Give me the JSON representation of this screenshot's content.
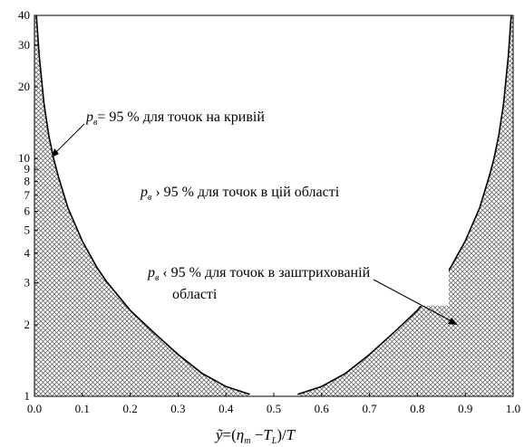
{
  "chart_data": {
    "type": "area",
    "xlabel": "ỹ=(η_m−T_L)/T",
    "xlabel_parts": {
      "y": "ỹ",
      "eq": "=(",
      "eta": "η",
      "eta_sub": "m",
      "minus": " −",
      "T": "T",
      "T_sub": "L",
      "close": ")/",
      "T2": "T"
    },
    "ylabel": "",
    "xlim": [
      0.0,
      1.0
    ],
    "ylim": [
      1,
      40
    ],
    "y_scale": "log",
    "grid": false,
    "x_ticks": [
      "0.0",
      "0.1",
      "0.2",
      "0.3",
      "0.4",
      "0.5",
      "0.6",
      "0.7",
      "0.8",
      "0.9",
      "1.0"
    ],
    "y_ticks": [
      {
        "value": 1,
        "label": "1"
      },
      {
        "value": 2,
        "label": "2"
      },
      {
        "value": 3,
        "label": "3"
      },
      {
        "value": 4,
        "label": "4"
      },
      {
        "value": 5,
        "label": "5"
      },
      {
        "value": 6,
        "label": "6"
      },
      {
        "value": 7,
        "label": "7"
      },
      {
        "value": 8,
        "label": "8"
      },
      {
        "value": 9,
        "label": "9"
      },
      {
        "value": 10,
        "label": "10"
      },
      {
        "value": 20,
        "label": "20"
      },
      {
        "value": 30,
        "label": "30"
      },
      {
        "value": 40,
        "label": "40"
      }
    ],
    "series": [
      {
        "x": [
          0.004,
          0.01,
          0.02,
          0.03,
          0.04,
          0.05,
          0.07,
          0.1,
          0.13,
          0.15,
          0.2,
          0.25,
          0.3,
          0.35,
          0.4,
          0.45,
          0.5,
          0.55,
          0.6,
          0.65,
          0.7,
          0.75,
          0.8,
          0.85,
          0.87,
          0.9,
          0.93,
          0.95,
          0.96,
          0.97,
          0.98,
          0.99,
          0.996
        ],
        "y": [
          40,
          27,
          17,
          12.5,
          10,
          8.4,
          6.2,
          4.5,
          3.5,
          3.05,
          2.3,
          1.85,
          1.5,
          1.25,
          1.1,
          1.02,
          1.0,
          1.02,
          1.1,
          1.25,
          1.5,
          1.85,
          2.3,
          3.05,
          3.5,
          4.5,
          6.2,
          8.4,
          10,
          12.5,
          17,
          27,
          40
        ]
      }
    ],
    "hatch_color": "#555555",
    "annotations": {
      "curve": {
        "p": "p",
        "sub": "в",
        "text": "= 95 % для точок на кривій"
      },
      "inside": {
        "p": "p",
        "sub": "в",
        "text": " › 95 % для точок в цій області"
      },
      "hatched": {
        "p": "p",
        "sub": "в",
        "text": " ‹ 95 % для точок в заштрихованій",
        "text2": "області"
      }
    }
  }
}
